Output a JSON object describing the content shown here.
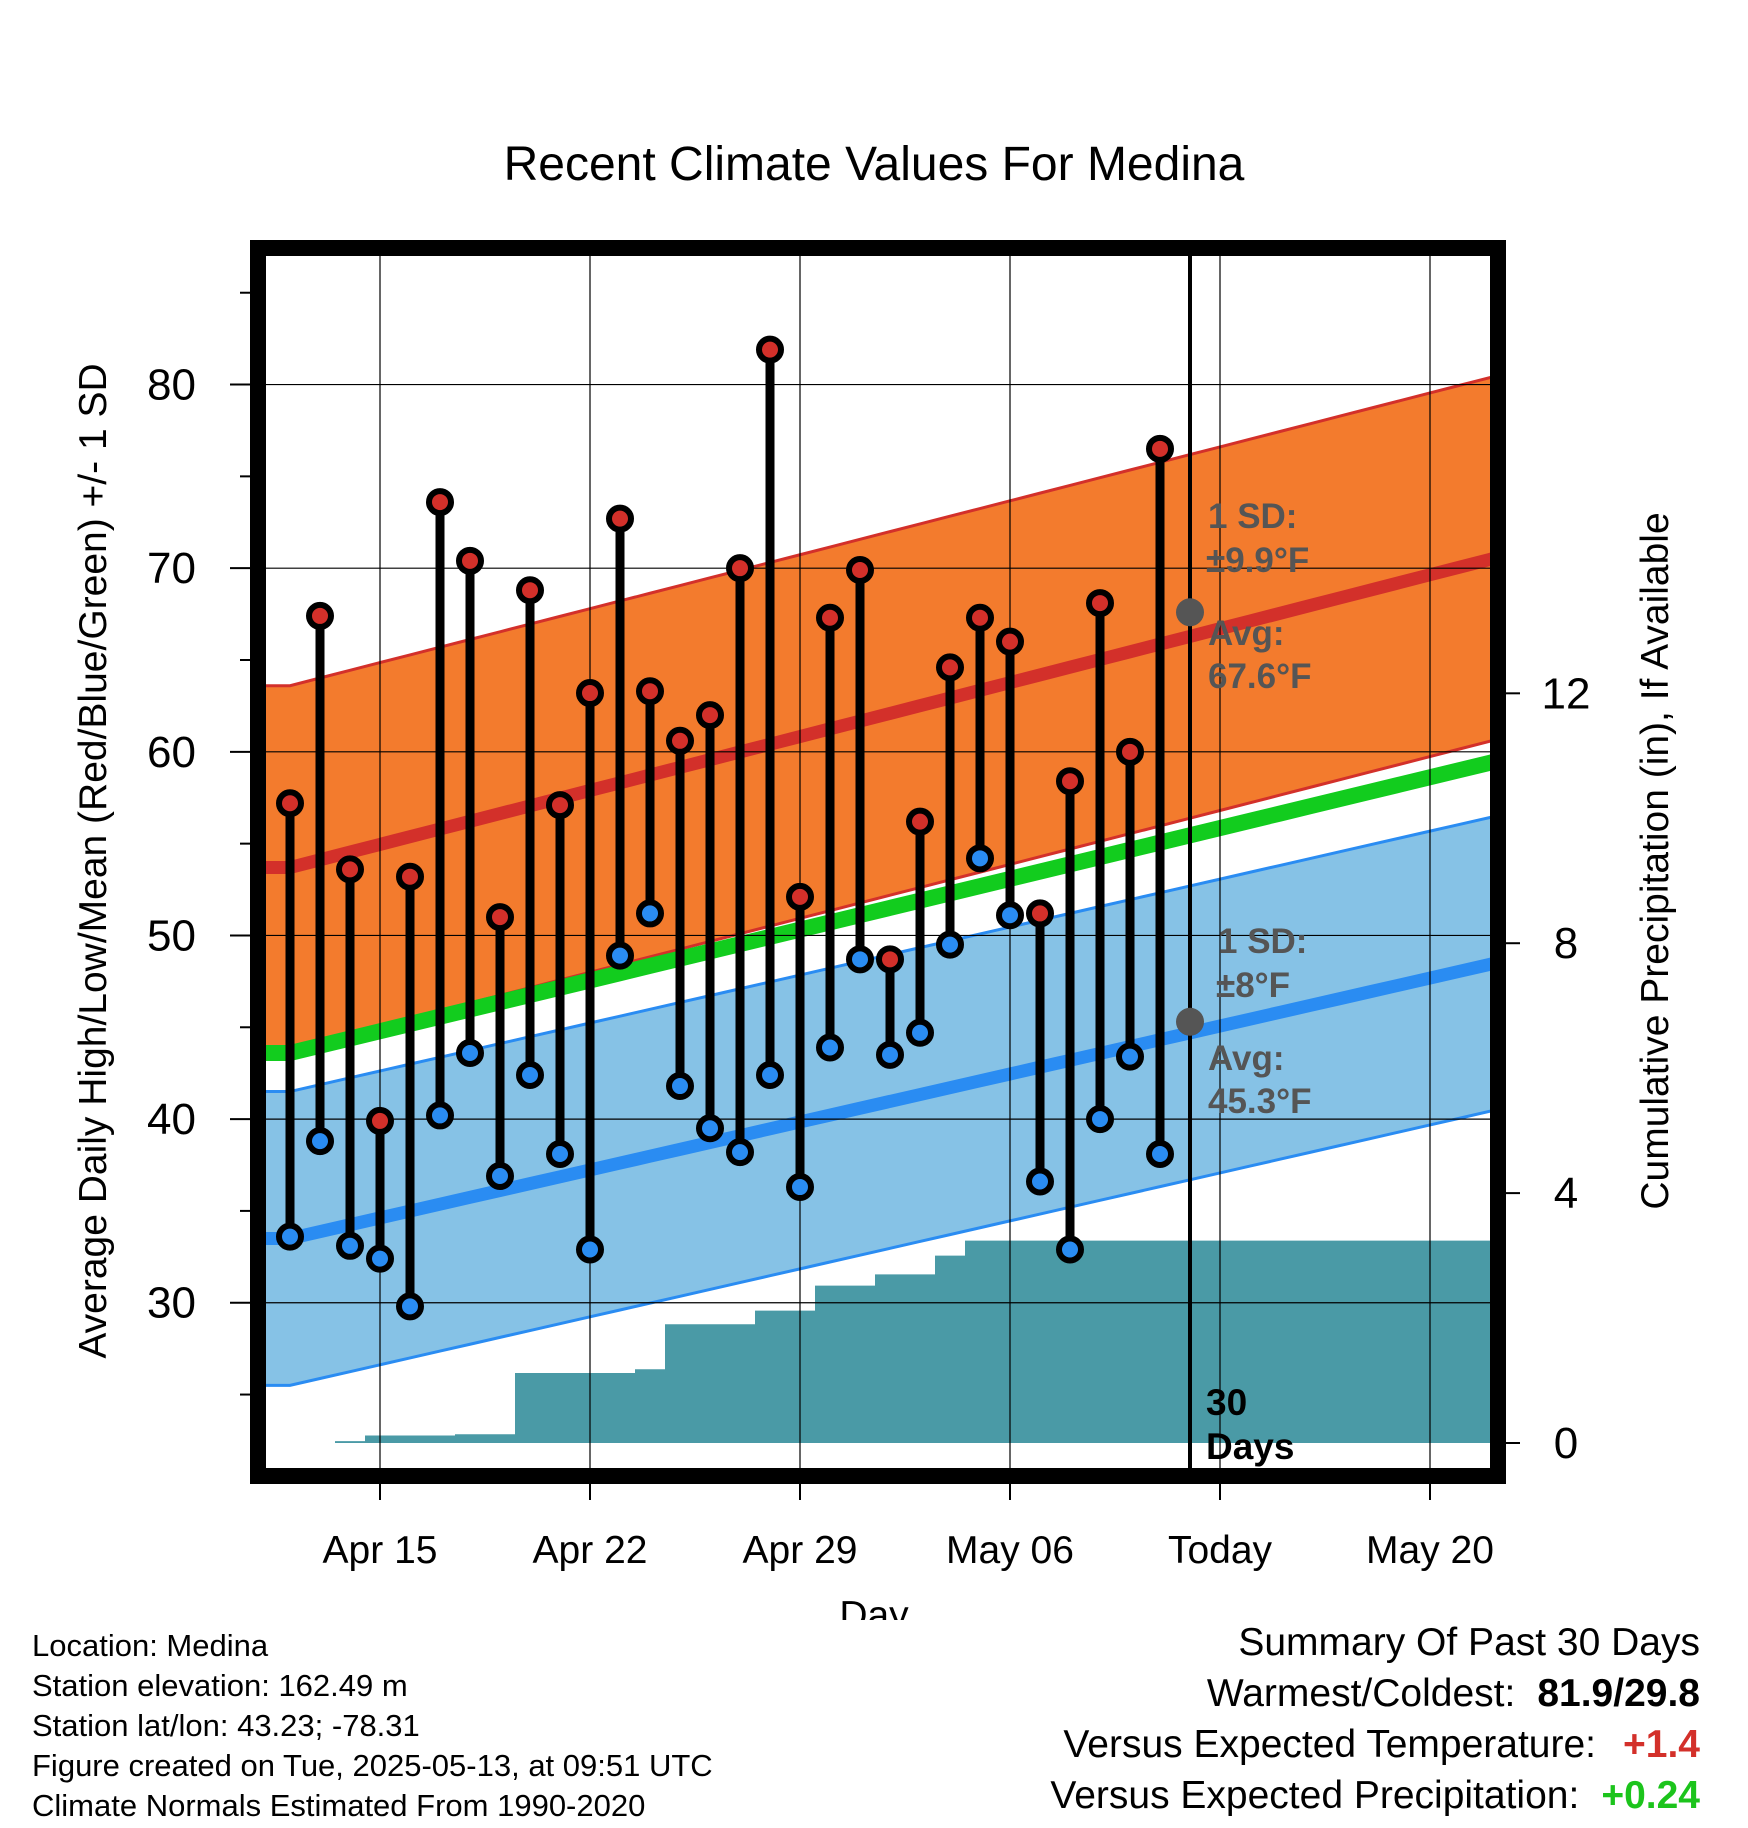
{
  "chart_data": {
    "type": "line",
    "title": "Recent Climate Values For Medina",
    "xlabel": "Day",
    "ylabel": "Average Daily High/Low/Mean (Red/Blue/Green) +/- 1 SD",
    "y2label": "Cumulative Precipitation (in), If Available",
    "ylim": [
      21,
      87
    ],
    "y2lim": [
      -0.4,
      19.0
    ],
    "yticks": [
      30,
      40,
      50,
      60,
      70,
      80
    ],
    "y2ticks": [
      0,
      4,
      8,
      12
    ],
    "xticks": [
      "Apr 15",
      "Apr 22",
      "Apr 29",
      "May 06",
      "Today",
      "May 20"
    ],
    "grid": true,
    "observed": {
      "high": [
        57.2,
        67.4,
        53.6,
        39.9,
        53.2,
        73.6,
        70.4,
        51.0,
        68.8,
        57.1,
        63.2,
        72.7,
        63.3,
        60.6,
        62.0,
        70.0,
        81.9,
        52.1,
        67.3,
        69.9,
        48.7,
        56.2,
        64.6,
        67.3,
        66.0,
        51.2,
        58.4,
        68.1,
        60.0,
        76.5
      ],
      "low": [
        33.6,
        38.8,
        33.1,
        32.4,
        29.8,
        40.2,
        43.6,
        36.9,
        42.4,
        38.1,
        32.9,
        48.9,
        51.2,
        41.8,
        39.5,
        38.2,
        42.4,
        36.3,
        43.9,
        48.7,
        43.5,
        44.7,
        49.5,
        54.2,
        51.1,
        36.6,
        32.9,
        40.0,
        43.4,
        38.1
      ]
    },
    "normals": {
      "high_mean_start": 53.7,
      "high_mean_end": 70.9,
      "high_sd": 9.9,
      "low_mean_start": 33.5,
      "low_mean_end": 48.8,
      "low_sd": 8.0,
      "mean_start": 43.6,
      "mean_end": 59.8
    },
    "precip_cumulative": [
      0,
      0,
      0.03,
      0.12,
      0.12,
      0.12,
      0.14,
      0.14,
      1.12,
      1.12,
      1.12,
      1.12,
      1.18,
      1.9,
      1.9,
      1.9,
      2.12,
      2.12,
      2.52,
      2.52,
      2.7,
      2.7,
      3.0,
      3.24,
      3.24,
      3.24,
      3.24,
      3.24,
      3.24,
      3.24
    ],
    "today_marker": {
      "label": "30 Days"
    },
    "annotations": {
      "high_sd_label": "1 SD:",
      "high_sd_value": "±9.9°F",
      "high_avg_label": "Avg:",
      "high_avg_value": "67.6°F",
      "high_avg_at_today": 67.6,
      "low_sd_label": "1 SD:",
      "low_sd_value": "±8°F",
      "low_avg_label": "Avg:",
      "low_avg_value": "45.3°F",
      "low_avg_at_today": 45.3
    },
    "colors": {
      "high_band": "#f37b2d",
      "high_line": "#d3302a",
      "low_band": "#86c2e6",
      "low_line": "#2a8cf2",
      "mean_line": "#12cc1e",
      "precip": "#4a9aa6",
      "high_dot": "#d3302a",
      "low_dot": "#2a8cf2",
      "avg_dot": "#555555",
      "annotation_text": "#555555"
    }
  },
  "footer_left": {
    "location": "Location: Medina",
    "elevation": "Station elevation: 162.49 m",
    "latlon": "Station lat/lon: 43.23; -78.31",
    "created": "Figure created on Tue, 2025-05-13, at 09:51 UTC",
    "normals": "Climate Normals Estimated From 1990-2020"
  },
  "summary": {
    "title": "Summary Of Past 30 Days",
    "warmest_coldest_label": "Warmest/Coldest:",
    "warmest_coldest_value": "81.9/29.8",
    "temp_label": "Versus Expected Temperature:",
    "temp_value": "+1.4",
    "temp_color": "#d3302a",
    "precip_label": "Versus Expected Precipitation:",
    "precip_value": "+0.24",
    "precip_color": "#1cc41c"
  }
}
